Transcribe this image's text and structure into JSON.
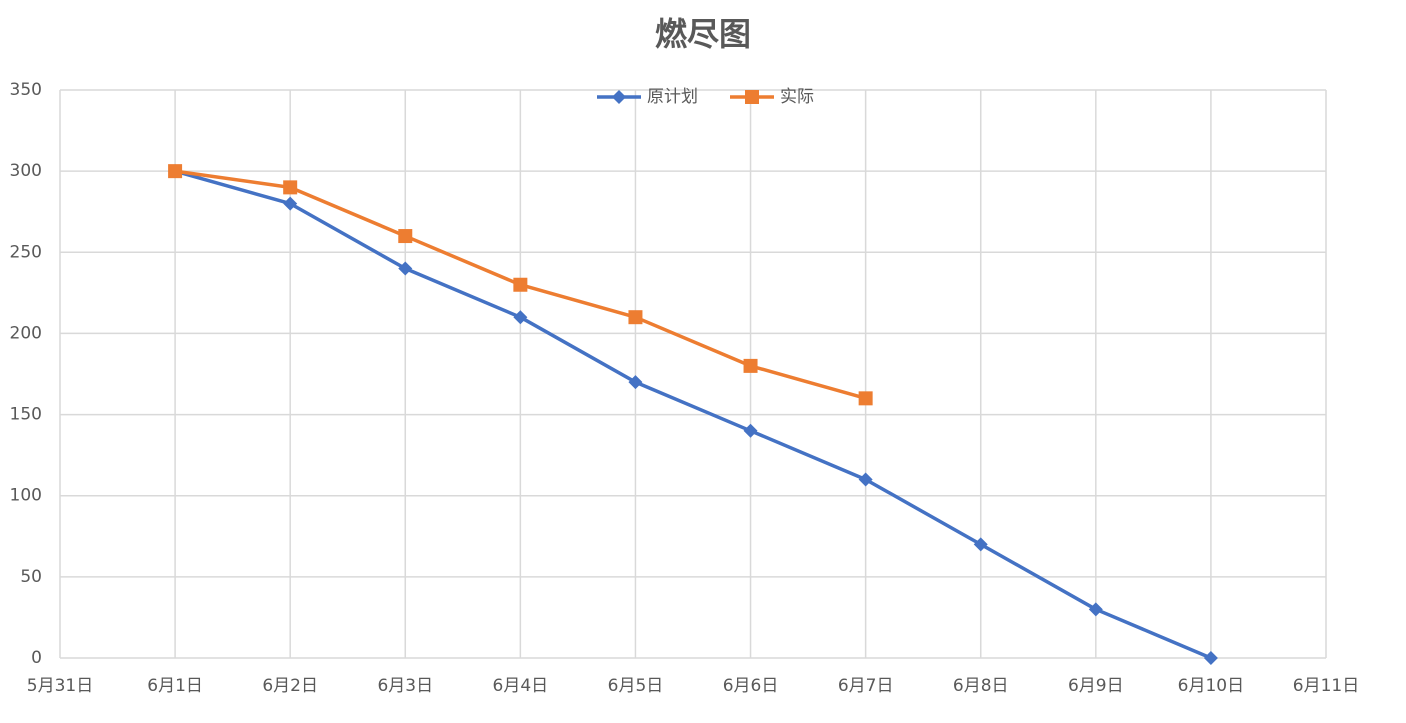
{
  "chart_data": {
    "type": "line",
    "title": "燃尽图",
    "categories": [
      "5月31日",
      "6月1日",
      "6月2日",
      "6月3日",
      "6月4日",
      "6月5日",
      "6月6日",
      "6月7日",
      "6月8日",
      "6月9日",
      "6月10日",
      "6月11日"
    ],
    "series": [
      {
        "name": "原计划",
        "color": "#4472c4",
        "marker": "diamond",
        "values": [
          null,
          300,
          280,
          240,
          210,
          170,
          140,
          110,
          70,
          30,
          0,
          null
        ]
      },
      {
        "name": "实际",
        "color": "#ed7d31",
        "marker": "square",
        "values": [
          null,
          300,
          290,
          260,
          230,
          210,
          180,
          160,
          null,
          null,
          null,
          null
        ]
      }
    ],
    "ylim": [
      0,
      350
    ],
    "yticks": [
      0,
      50,
      100,
      150,
      200,
      250,
      300,
      350
    ],
    "grid": true,
    "legend": "top"
  }
}
